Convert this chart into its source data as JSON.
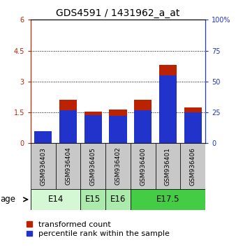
{
  "title": "GDS4591 / 1431962_a_at",
  "samples": [
    "GSM936403",
    "GSM936404",
    "GSM936405",
    "GSM936402",
    "GSM936400",
    "GSM936401",
    "GSM936406"
  ],
  "transformed_count": [
    0.27,
    2.1,
    1.55,
    1.65,
    2.1,
    3.8,
    1.75
  ],
  "percentile_rank_pct": [
    10,
    27,
    23,
    22,
    27,
    55,
    25
  ],
  "age_groups": [
    {
      "label": "E14",
      "span": [
        0,
        2
      ],
      "color": "#d4f7d4"
    },
    {
      "label": "E15",
      "span": [
        2,
        3
      ],
      "color": "#aaeaaa"
    },
    {
      "label": "E16",
      "span": [
        3,
        4
      ],
      "color": "#aaeaaa"
    },
    {
      "label": "E17.5",
      "span": [
        4,
        7
      ],
      "color": "#44cc44"
    }
  ],
  "ylim_left": [
    0,
    6
  ],
  "ylim_right": [
    0,
    100
  ],
  "yticks_left": [
    0,
    1.5,
    3,
    4.5,
    6
  ],
  "ytick_labels_left": [
    "0",
    "1.5",
    "3",
    "4.5",
    "6"
  ],
  "yticks_right": [
    0,
    25,
    50,
    75,
    100
  ],
  "ytick_labels_right": [
    "0",
    "25",
    "50",
    "75",
    "100%"
  ],
  "bar_color_red": "#bb2200",
  "bar_color_blue": "#2233cc",
  "bar_width": 0.7,
  "legend_label_red": "transformed count",
  "legend_label_blue": "percentile rank within the sample",
  "age_label": "age",
  "bg_color": "#ffffff",
  "sample_box_color": "#c8c8c8",
  "title_fontsize": 10,
  "tick_fontsize": 7,
  "legend_fontsize": 8
}
